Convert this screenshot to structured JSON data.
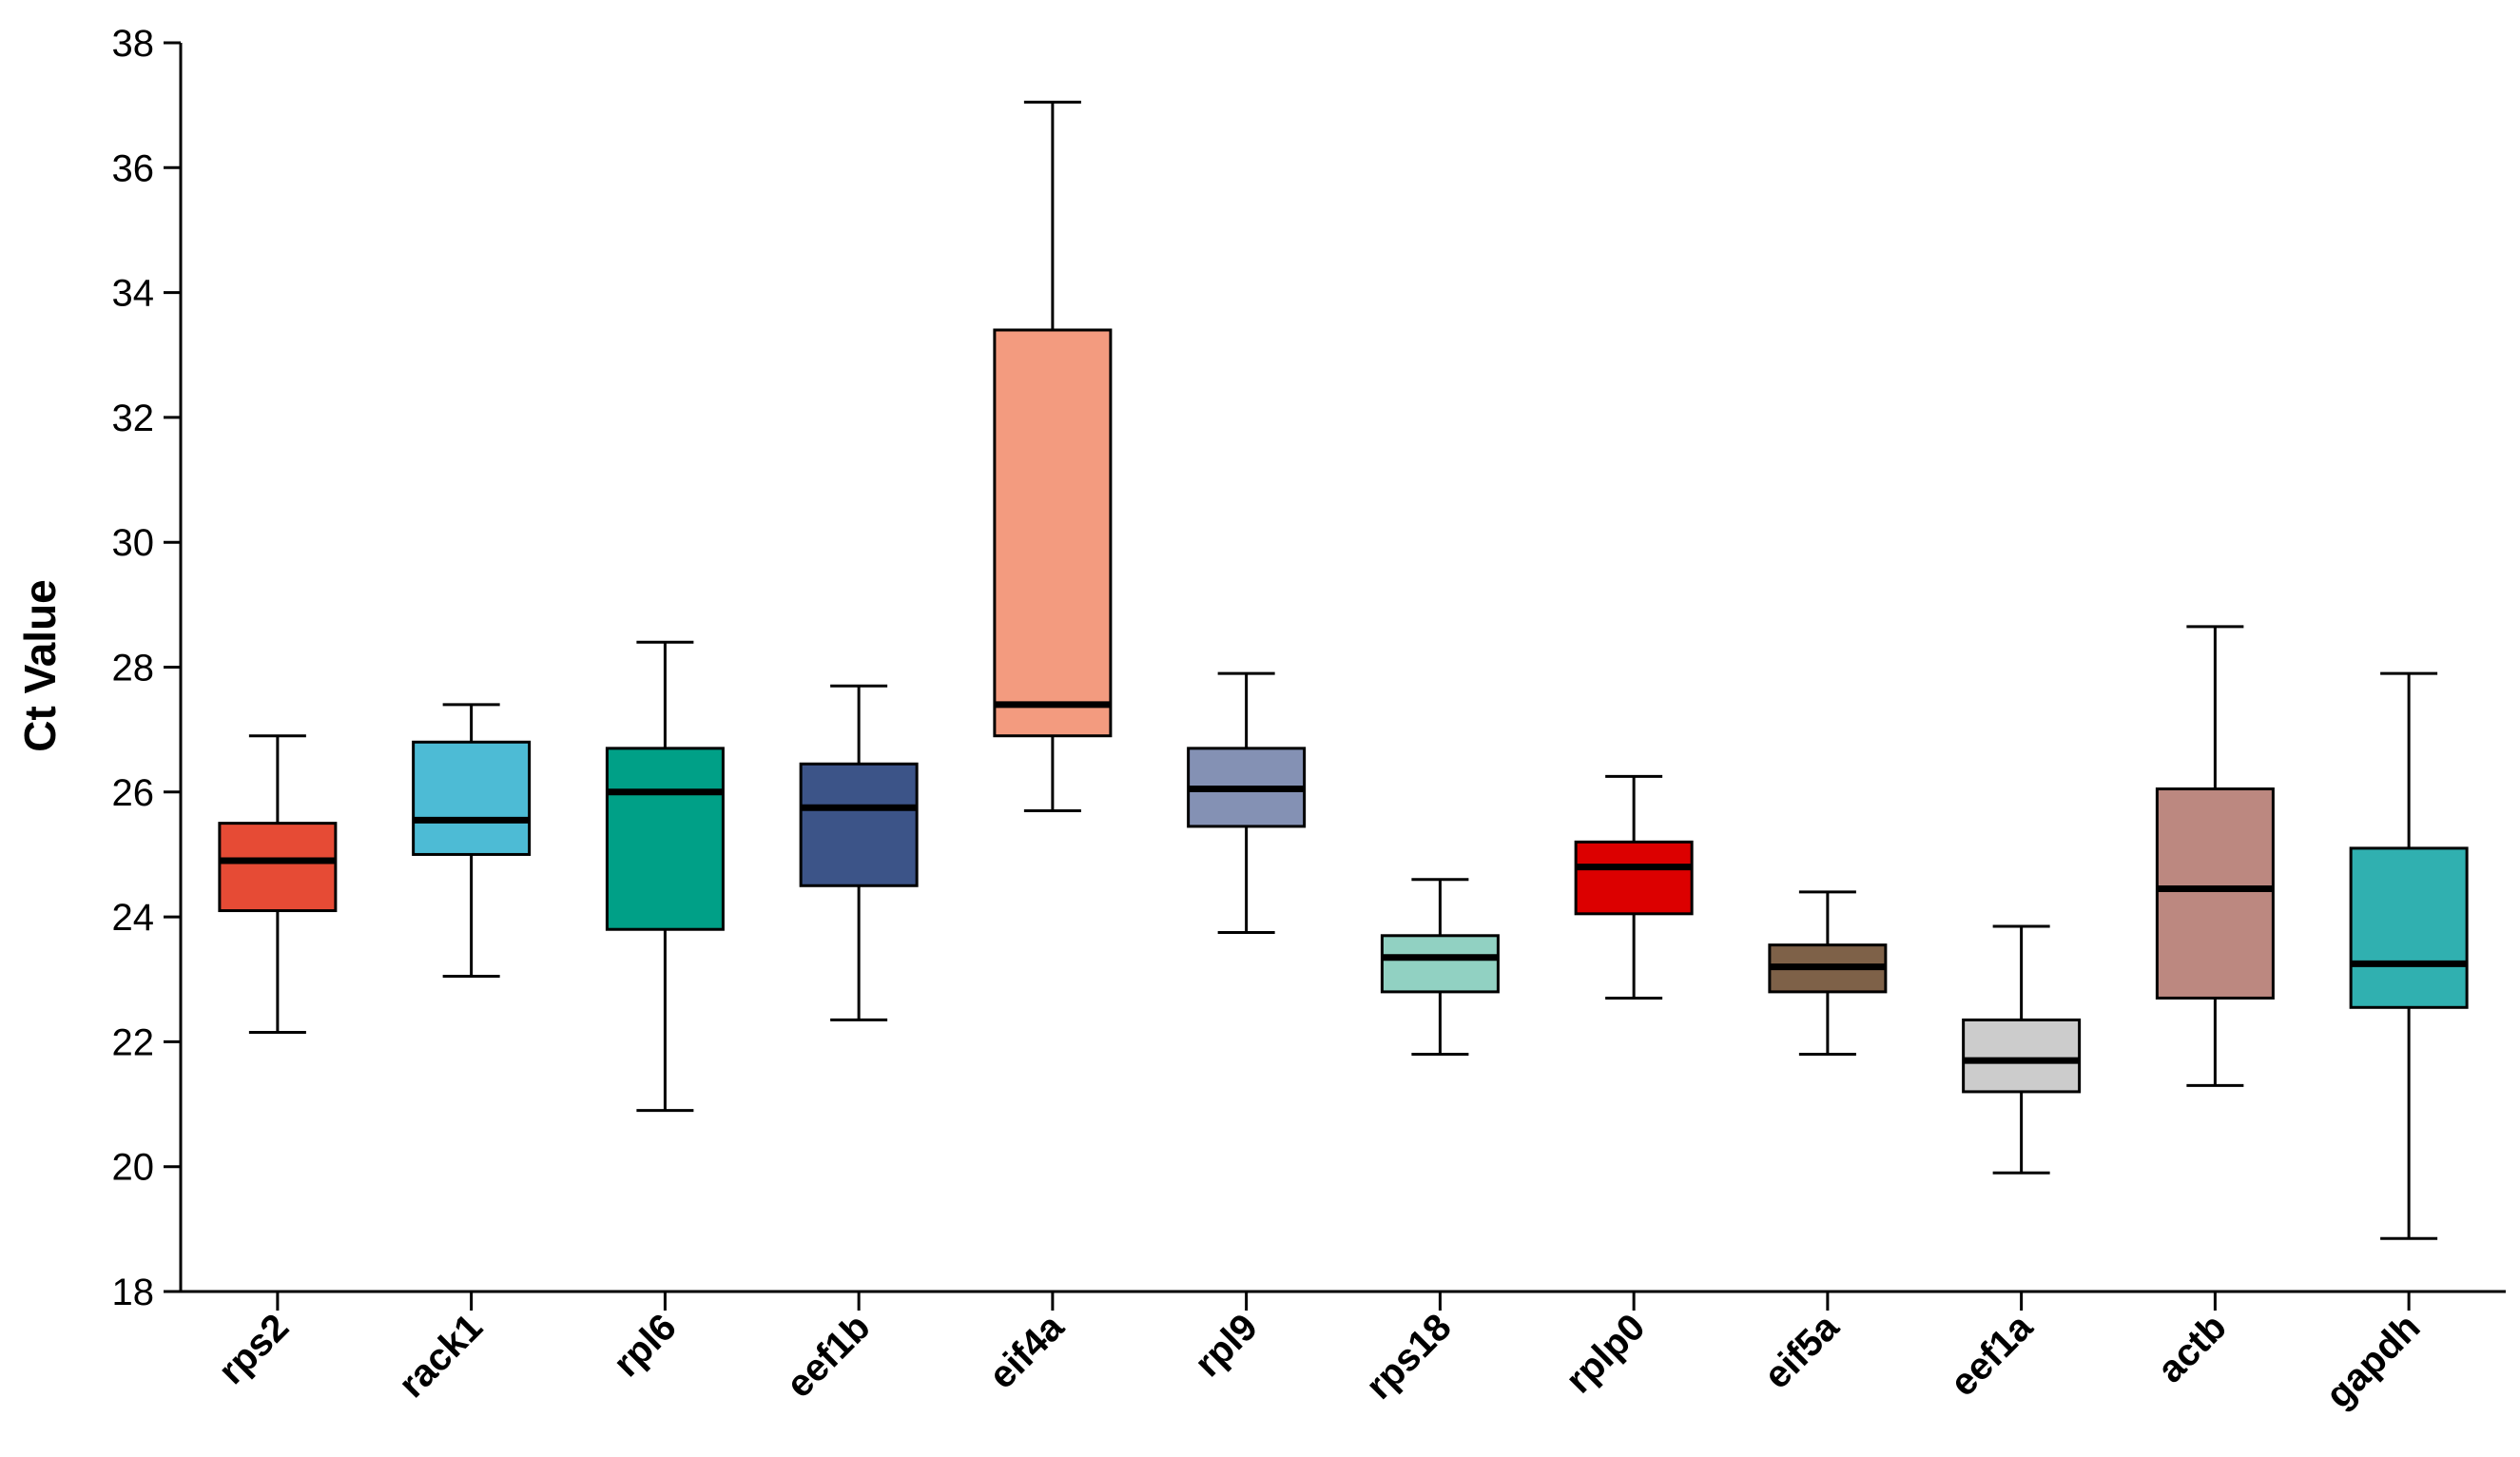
{
  "chart_data": {
    "type": "boxplot",
    "title": "",
    "xlabel": "",
    "ylabel": "Ct Value",
    "ylim": [
      18,
      38
    ],
    "yticks": [
      "18",
      "20",
      "22",
      "24",
      "26",
      "28",
      "30",
      "32",
      "34",
      "36",
      "38"
    ],
    "categories": [
      "rps2",
      "rack1",
      "rpl6",
      "eef1b",
      "eif4a",
      "rpl9",
      "rps18",
      "rplp0",
      "eif5a",
      "eef1a",
      "actb",
      "gapdh"
    ],
    "boxes": [
      {
        "name": "rps2",
        "min": 22.15,
        "q1": 24.1,
        "median": 24.9,
        "q3": 25.5,
        "max": 26.9,
        "color": "#e64b35"
      },
      {
        "name": "rack1",
        "min": 23.05,
        "q1": 25.0,
        "median": 25.55,
        "q3": 26.8,
        "max": 27.4,
        "color": "#4dbbd5"
      },
      {
        "name": "rpl6",
        "min": 20.9,
        "q1": 23.8,
        "median": 26.0,
        "q3": 26.7,
        "max": 28.4,
        "color": "#00a087"
      },
      {
        "name": "eef1b",
        "min": 22.35,
        "q1": 24.5,
        "median": 25.75,
        "q3": 26.45,
        "max": 27.7,
        "color": "#3c5488"
      },
      {
        "name": "eif4a",
        "min": 25.7,
        "q1": 26.9,
        "median": 27.4,
        "q3": 33.4,
        "max": 37.05,
        "color": "#f39b7f"
      },
      {
        "name": "rpl9",
        "min": 23.75,
        "q1": 25.45,
        "median": 26.05,
        "q3": 26.7,
        "max": 27.9,
        "color": "#8491b4"
      },
      {
        "name": "rps18",
        "min": 21.8,
        "q1": 22.8,
        "median": 23.35,
        "q3": 23.7,
        "max": 24.6,
        "color": "#91d1c2"
      },
      {
        "name": "rplp0",
        "min": 22.7,
        "q1": 24.05,
        "median": 24.8,
        "q3": 25.2,
        "max": 26.25,
        "color": "#dc0000"
      },
      {
        "name": "eif5a",
        "min": 21.8,
        "q1": 22.8,
        "median": 23.2,
        "q3": 23.55,
        "max": 24.4,
        "color": "#7e6148"
      },
      {
        "name": "eef1a",
        "min": 19.9,
        "q1": 21.2,
        "median": 21.7,
        "q3": 22.35,
        "max": 23.85,
        "color": "#cccccc"
      },
      {
        "name": "actb",
        "min": 21.3,
        "q1": 22.7,
        "median": 24.45,
        "q3": 26.05,
        "max": 28.65,
        "color": "#bc8880"
      },
      {
        "name": "gapdh",
        "min": 18.85,
        "q1": 22.55,
        "median": 23.25,
        "q3": 25.1,
        "max": 27.9,
        "color": "#30b0b0"
      }
    ],
    "grid": false,
    "legend": "none"
  }
}
